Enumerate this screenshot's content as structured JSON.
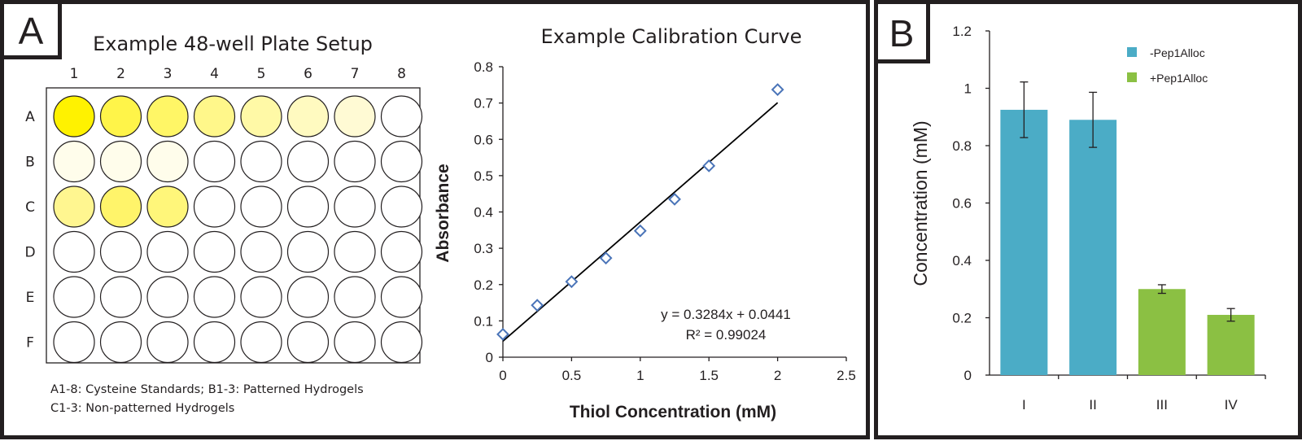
{
  "panel_a": {
    "letter": "A",
    "plate": {
      "title": "Example 48-well Plate Setup",
      "columns": [
        "1",
        "2",
        "3",
        "4",
        "5",
        "6",
        "7",
        "8"
      ],
      "rows": [
        "A",
        "B",
        "C",
        "D",
        "E",
        "F"
      ],
      "well_colors": [
        [
          "#fff200",
          "#fff449",
          "#fff666",
          "#fff78a",
          "#fff9a6",
          "#fffac0",
          "#fffad4",
          "#ffffff"
        ],
        [
          "#fffdeb",
          "#fffdeb",
          "#fffdeb",
          "#ffffff",
          "#ffffff",
          "#ffffff",
          "#ffffff",
          "#ffffff"
        ],
        [
          "#fff690",
          "#fff46a",
          "#fff67a",
          "#ffffff",
          "#ffffff",
          "#ffffff",
          "#ffffff",
          "#ffffff"
        ],
        [
          "#ffffff",
          "#ffffff",
          "#ffffff",
          "#ffffff",
          "#ffffff",
          "#ffffff",
          "#ffffff",
          "#ffffff"
        ],
        [
          "#ffffff",
          "#ffffff",
          "#ffffff",
          "#ffffff",
          "#ffffff",
          "#ffffff",
          "#ffffff",
          "#ffffff"
        ],
        [
          "#ffffff",
          "#ffffff",
          "#ffffff",
          "#ffffff",
          "#ffffff",
          "#ffffff",
          "#ffffff",
          "#ffffff"
        ]
      ],
      "note_line1": "A1-8: Cysteine Standards; B1-3: Patterned Hydrogels",
      "note_line2": "C1-3: Non-patterned Hydrogels"
    }
  },
  "panel_b": {
    "letter": "B"
  },
  "chart_data": [
    {
      "type": "scatter",
      "title": "Example Calibration Curve",
      "xlabel": "Thiol Concentration (mM)",
      "ylabel": "Absorbance",
      "xlim": [
        0,
        2.5
      ],
      "ylim": [
        0,
        0.8
      ],
      "xticks": [
        "0",
        "0.5",
        "1",
        "1.5",
        "2",
        "2.5"
      ],
      "yticks": [
        "0",
        "0.1",
        "0.2",
        "0.3",
        "0.4",
        "0.5",
        "0.6",
        "0.7",
        "0.8"
      ],
      "x": [
        0,
        0.25,
        0.5,
        0.75,
        1.0,
        1.25,
        1.5,
        2.0
      ],
      "y": [
        0.063,
        0.143,
        0.208,
        0.273,
        0.348,
        0.435,
        0.527,
        0.737
      ],
      "trendline": {
        "slope": 0.3284,
        "intercept": 0.0441,
        "x_range": [
          0,
          2
        ]
      },
      "equation": "y = 0.3284x + 0.0441",
      "r_squared": "R² = 0.99024",
      "marker_color": "#4a74b8"
    },
    {
      "type": "bar",
      "categories": [
        "I",
        "II",
        "III",
        "IV"
      ],
      "values": [
        0.925,
        0.89,
        0.3,
        0.21
      ],
      "errors": [
        0.097,
        0.096,
        0.015,
        0.022
      ],
      "bar_colors": [
        "#4bacc6",
        "#4bacc6",
        "#8bc043",
        "#8bc043"
      ],
      "ylabel": "Concentration (mM)",
      "ylim": [
        0,
        1.2
      ],
      "yticks": [
        "0",
        "0.2",
        "0.4",
        "0.6",
        "0.8",
        "1",
        "1.2"
      ],
      "legend": [
        {
          "label": "-Pep1Alloc",
          "color": "#4bacc6"
        },
        {
          "label": "+Pep1Alloc",
          "color": "#8bc043"
        }
      ],
      "legend_position": "top-right"
    }
  ]
}
